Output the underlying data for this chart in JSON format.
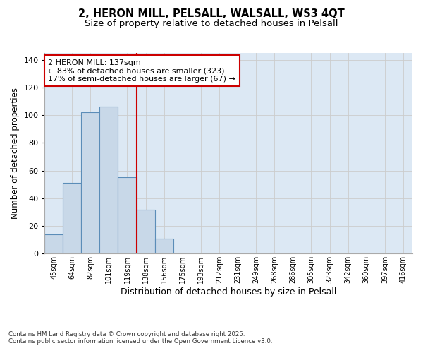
{
  "title_line1": "2, HERON MILL, PELSALL, WALSALL, WS3 4QT",
  "title_line2": "Size of property relative to detached houses in Pelsall",
  "xlabel": "Distribution of detached houses by size in Pelsall",
  "ylabel": "Number of detached properties",
  "categories": [
    "45sqm",
    "64sqm",
    "82sqm",
    "101sqm",
    "119sqm",
    "138sqm",
    "156sqm",
    "175sqm",
    "193sqm",
    "212sqm",
    "231sqm",
    "249sqm",
    "268sqm",
    "286sqm",
    "305sqm",
    "323sqm",
    "342sqm",
    "360sqm",
    "397sqm",
    "416sqm"
  ],
  "values": [
    14,
    51,
    102,
    106,
    55,
    32,
    11,
    0,
    0,
    0,
    0,
    0,
    0,
    0,
    0,
    0,
    0,
    0,
    0,
    0
  ],
  "bar_color": "#c8d8e8",
  "bar_edge_color": "#5b8db8",
  "highlight_color": "#cc0000",
  "annotation_title": "2 HERON MILL: 137sqm",
  "annotation_line2": "← 83% of detached houses are smaller (323)",
  "annotation_line3": "17% of semi-detached houses are larger (67) →",
  "annotation_box_color": "#cc0000",
  "annotation_bg": "#ffffff",
  "ylim": [
    0,
    145
  ],
  "yticks": [
    0,
    20,
    40,
    60,
    80,
    100,
    120,
    140
  ],
  "grid_color": "#cccccc",
  "bg_color": "#dce8f4",
  "footnote1": "Contains HM Land Registry data © Crown copyright and database right 2025.",
  "footnote2": "Contains public sector information licensed under the Open Government Licence v3.0.",
  "title_fontsize": 10.5,
  "subtitle_fontsize": 9.5,
  "xlabel_fontsize": 9,
  "ylabel_fontsize": 8.5,
  "annotation_fontsize": 8,
  "red_line_x": 4.5
}
